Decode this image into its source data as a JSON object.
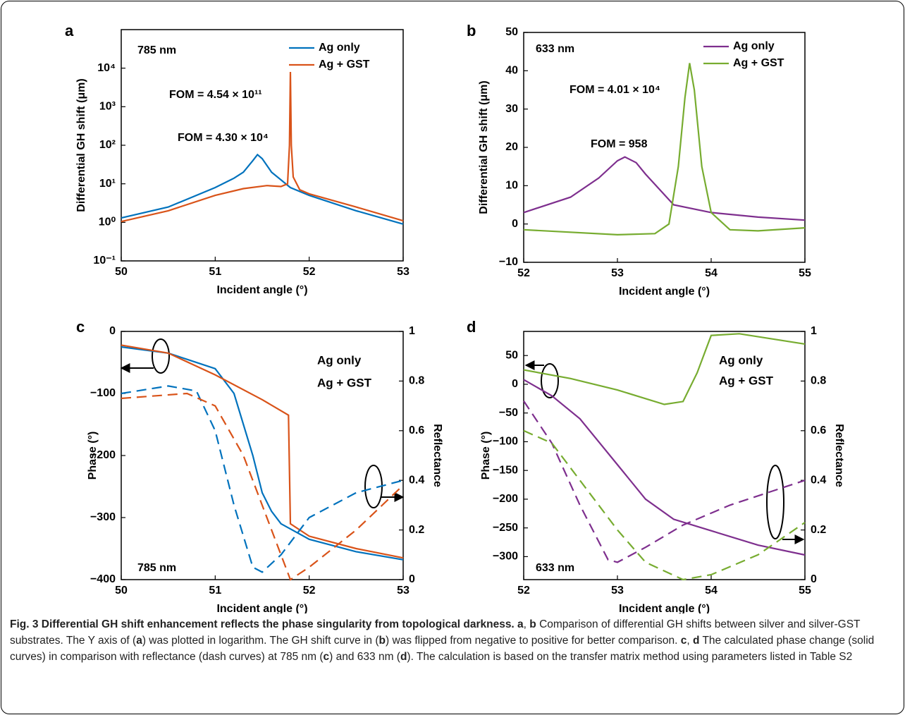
{
  "chart_data": [
    {
      "type": "line",
      "panel_label": "a",
      "xlabel": "Incident angle (°)",
      "ylabel": "Differential GH shift (μm)",
      "xlim": [
        50,
        53
      ],
      "xticks": [
        50,
        51,
        52,
        53
      ],
      "log_y": true,
      "ylim": [
        0.1,
        100000
      ],
      "yticks": [
        {
          "value": 0.1,
          "label": "10⁻¹"
        },
        {
          "value": 1,
          "label": "10⁰"
        },
        {
          "value": 10,
          "label": "10¹"
        },
        {
          "value": 100,
          "label": "10²"
        },
        {
          "value": 1000,
          "label": "10³"
        },
        {
          "value": 10000,
          "label": "10⁴"
        }
      ],
      "legend": "lines",
      "series": [
        {
          "name": "Ag only",
          "color": "#0072bd",
          "x": [
            50,
            50.5,
            51,
            51.2,
            51.3,
            51.4,
            51.45,
            51.5,
            51.6,
            51.8,
            52,
            52.5,
            53
          ],
          "values": [
            1.3,
            2.5,
            8,
            14,
            20,
            40,
            57,
            45,
            20,
            8,
            5,
            2,
            0.9
          ]
        },
        {
          "name": "Ag + GST",
          "color": "#d95319",
          "x": [
            50,
            50.5,
            51,
            51.3,
            51.55,
            51.7,
            51.77,
            51.79,
            51.8,
            51.81,
            51.83,
            51.9,
            52,
            52.5,
            53
          ],
          "values": [
            1.05,
            2,
            5,
            7.5,
            9,
            8.5,
            10,
            100,
            8000,
            100,
            15,
            7,
            5.5,
            2.5,
            1.1
          ]
        }
      ],
      "annotations": [
        {
          "text": "785 nm",
          "color": "#000000"
        },
        {
          "text": "FOM = 4.54 × 10¹¹",
          "color": "#d95319"
        },
        {
          "text": "FOM = 4.30 × 10⁴",
          "color": "#0072bd"
        }
      ]
    },
    {
      "type": "line",
      "panel_label": "b",
      "xlabel": "Incident angle (°)",
      "ylabel": "Differential GH shift (μm)",
      "xlim": [
        52,
        55
      ],
      "xticks": [
        52,
        53,
        54,
        55
      ],
      "ylim": [
        -10,
        50
      ],
      "yticks": [
        {
          "value": -10,
          "label": "−10"
        },
        0,
        10,
        20,
        30,
        40,
        50
      ],
      "legend": "lines",
      "series": [
        {
          "name": "Ag only",
          "color": "#7e2f8e",
          "x": [
            52,
            52.5,
            52.8,
            53,
            53.08,
            53.2,
            53.3,
            53.6,
            54,
            54.5,
            55
          ],
          "values": [
            3,
            7,
            12,
            16.5,
            17.5,
            16,
            13,
            5,
            3,
            1.8,
            1
          ]
        },
        {
          "name": "Ag + GST",
          "color": "#77ac30",
          "x": [
            52,
            53,
            53.4,
            53.55,
            53.65,
            53.72,
            53.77,
            53.82,
            53.9,
            54,
            54.2,
            54.5,
            55
          ],
          "values": [
            -1.5,
            -2.8,
            -2.5,
            0,
            15,
            33,
            42,
            35,
            15,
            3,
            -1.5,
            -1.8,
            -1
          ]
        }
      ],
      "annotations": [
        {
          "text": "633 nm",
          "color": "#000000"
        },
        {
          "text": "FOM = 4.01 × 10⁴",
          "color": "#77ac30"
        },
        {
          "text": "FOM = 958",
          "color": "#7e2f8e"
        }
      ]
    },
    {
      "type": "line",
      "panel_label": "c",
      "xlabel": "Incident angle (°)",
      "ylabel": "Phase (°)",
      "y2label": "Reflectance",
      "xlim": [
        50,
        53
      ],
      "xticks": [
        50,
        51,
        52,
        53
      ],
      "ylim": [
        -400,
        0
      ],
      "yticks": [
        {
          "value": -400,
          "label": "−400"
        },
        {
          "value": -300,
          "label": "−300"
        },
        {
          "value": -200,
          "label": "−200"
        },
        {
          "value": -100,
          "label": "−100"
        },
        0
      ],
      "y2lim": [
        0,
        1
      ],
      "y2ticks": [
        0,
        0.2,
        0.4,
        0.6,
        0.8,
        1
      ],
      "legend": "text",
      "series": [
        {
          "name": "Ag only",
          "color": "#0072bd",
          "x": [
            50,
            50.5,
            51,
            51.2,
            51.4,
            51.5,
            51.6,
            51.7,
            52,
            52.5,
            53
          ],
          "values": [
            -25,
            -35,
            -60,
            -100,
            -200,
            -260,
            -290,
            -310,
            -335,
            -355,
            -368
          ]
        },
        {
          "name": "Ag + GST",
          "color": "#d95319",
          "x": [
            50,
            50.5,
            51,
            51.5,
            51.78,
            51.8,
            52,
            52.5,
            53
          ],
          "values": [
            -22,
            -35,
            -70,
            -110,
            -135,
            -310,
            -330,
            -350,
            -365
          ]
        },
        {
          "color": "#0072bd",
          "axis": "y2",
          "dash": true,
          "x": [
            50,
            50.5,
            50.8,
            51,
            51.2,
            51.4,
            51.5,
            51.7,
            52,
            52.5,
            53
          ],
          "values": [
            0.75,
            0.78,
            0.76,
            0.6,
            0.3,
            0.05,
            0.03,
            0.1,
            0.25,
            0.35,
            0.4
          ]
        },
        {
          "color": "#d95319",
          "axis": "y2",
          "dash": true,
          "x": [
            50,
            50.7,
            51,
            51.3,
            51.6,
            51.8,
            52,
            52.5,
            53
          ],
          "values": [
            0.73,
            0.75,
            0.7,
            0.5,
            0.2,
            0,
            0.05,
            0.2,
            0.38
          ]
        }
      ],
      "annotations": [
        {
          "text": "785 nm",
          "color": "#000000"
        }
      ]
    },
    {
      "type": "line",
      "panel_label": "d",
      "xlabel": "Incident angle (°)",
      "ylabel": "Phase (°)",
      "y2label": "Reflectance",
      "xlim": [
        52,
        55
      ],
      "xticks": [
        52,
        53,
        54,
        55
      ],
      "ylim": [
        -340,
        92
      ],
      "yticks": [
        {
          "value": -300,
          "label": "−300"
        },
        {
          "value": -250,
          "label": "−250"
        },
        {
          "value": -200,
          "label": "−200"
        },
        {
          "value": -150,
          "label": "−150"
        },
        {
          "value": -100,
          "label": "−100"
        },
        {
          "value": -50,
          "label": "−50"
        },
        0,
        50
      ],
      "y2lim": [
        0,
        1
      ],
      "y2ticks": [
        0,
        0.2,
        0.4,
        0.6,
        0.8,
        1
      ],
      "legend": "text",
      "series": [
        {
          "name": "Ag only",
          "color": "#7e2f8e",
          "x": [
            52,
            52.3,
            52.6,
            53,
            53.3,
            53.6,
            54,
            54.5,
            55
          ],
          "values": [
            8,
            -20,
            -60,
            -140,
            -200,
            -235,
            -255,
            -280,
            -297
          ]
        },
        {
          "name": "Ag + GST",
          "color": "#77ac30",
          "x": [
            52,
            52.5,
            53,
            53.5,
            53.7,
            53.85,
            54,
            54.3,
            55
          ],
          "values": [
            25,
            10,
            -10,
            -35,
            -30,
            20,
            85,
            88,
            70
          ]
        },
        {
          "color": "#7e2f8e",
          "axis": "y2",
          "dash": true,
          "x": [
            52,
            52.3,
            52.6,
            52.9,
            53,
            53.3,
            53.7,
            54.2,
            55
          ],
          "values": [
            0.72,
            0.55,
            0.3,
            0.08,
            0.07,
            0.13,
            0.22,
            0.3,
            0.4
          ]
        },
        {
          "color": "#77ac30",
          "axis": "y2",
          "dash": true,
          "x": [
            52,
            52.3,
            52.6,
            53,
            53.3,
            53.7,
            54,
            54.5,
            55
          ],
          "values": [
            0.6,
            0.55,
            0.4,
            0.2,
            0.07,
            0,
            0.02,
            0.1,
            0.23
          ]
        }
      ],
      "annotations": [
        {
          "text": "633 nm",
          "color": "#000000"
        }
      ]
    }
  ],
  "caption": {
    "runs": [
      {
        "text": "Fig. 3 Differential GH shift enhancement reflects the phase singularity from topological darkness. a",
        "bold": true
      },
      {
        "text": ", ",
        "bold": false
      },
      {
        "text": "b",
        "bold": true
      },
      {
        "text": " Comparison of differential GH shifts between silver and silver-GST substrates. The Y axis of (",
        "bold": false
      },
      {
        "text": "a",
        "bold": true
      },
      {
        "text": ") was plotted in logarithm. The GH shift curve in (",
        "bold": false
      },
      {
        "text": "b",
        "bold": true
      },
      {
        "text": ") was flipped from negative to positive for better comparison. ",
        "bold": false
      },
      {
        "text": "c",
        "bold": true
      },
      {
        "text": ", ",
        "bold": false
      },
      {
        "text": "d",
        "bold": true
      },
      {
        "text": " The calculated phase change (solid curves) in comparison with reflectance (dash curves) at 785 nm (",
        "bold": false
      },
      {
        "text": "c",
        "bold": true
      },
      {
        "text": ") and 633 nm (",
        "bold": false
      },
      {
        "text": "d",
        "bold": true
      },
      {
        "text": "). The calculation is based on the transfer matrix method using parameters listed in Table S2",
        "bold": false
      }
    ]
  }
}
